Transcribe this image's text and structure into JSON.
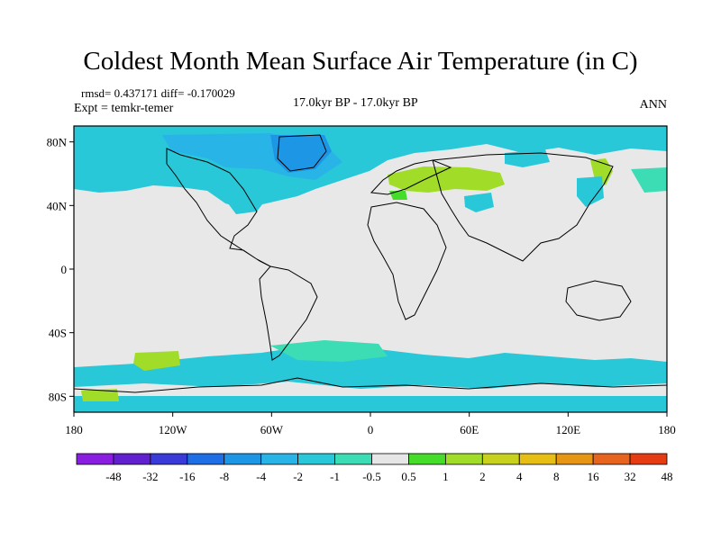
{
  "title": "Coldest Month Mean Surface Air Temperature (in C)",
  "stats": "rmsd= 0.437171  diff= -0.170029",
  "experiment": "Expt = temkr-temer",
  "period": "17.0kyr BP - 17.0kyr BP",
  "season": "ANN",
  "lat_labels": [
    "80N",
    "40N",
    "0",
    "40S",
    "80S"
  ],
  "lat_values": [
    80,
    40,
    0,
    -40,
    -80
  ],
  "lon_labels": [
    "180",
    "120W",
    "60W",
    "0",
    "60E",
    "120E",
    "180"
  ],
  "lon_values": [
    -180,
    -120,
    -60,
    0,
    60,
    120,
    180
  ],
  "colorbar": {
    "colors": [
      "#8a1ee0",
      "#6020d0",
      "#3a3ad8",
      "#1e6ee6",
      "#1e96e6",
      "#28b4e6",
      "#28c8d8",
      "#3cdcb4",
      "#e6e6e6",
      "#46dc2a",
      "#a0dc28",
      "#c8d21e",
      "#e6be14",
      "#e69614",
      "#e6641e",
      "#e63c14"
    ],
    "labels": [
      "-48",
      "-32",
      "-16",
      "-8",
      "-4",
      "-2",
      "-1",
      "-0.5",
      "0.5",
      "1",
      "2",
      "4",
      "8",
      "16",
      "32",
      "48"
    ]
  },
  "colors": {
    "land_neutral": "#e8e8e8",
    "cyan": "#28c8d8",
    "teal": "#3cdcb4",
    "blue": "#28b4e6",
    "green": "#a0dc28",
    "lime": "#46dc2a"
  }
}
